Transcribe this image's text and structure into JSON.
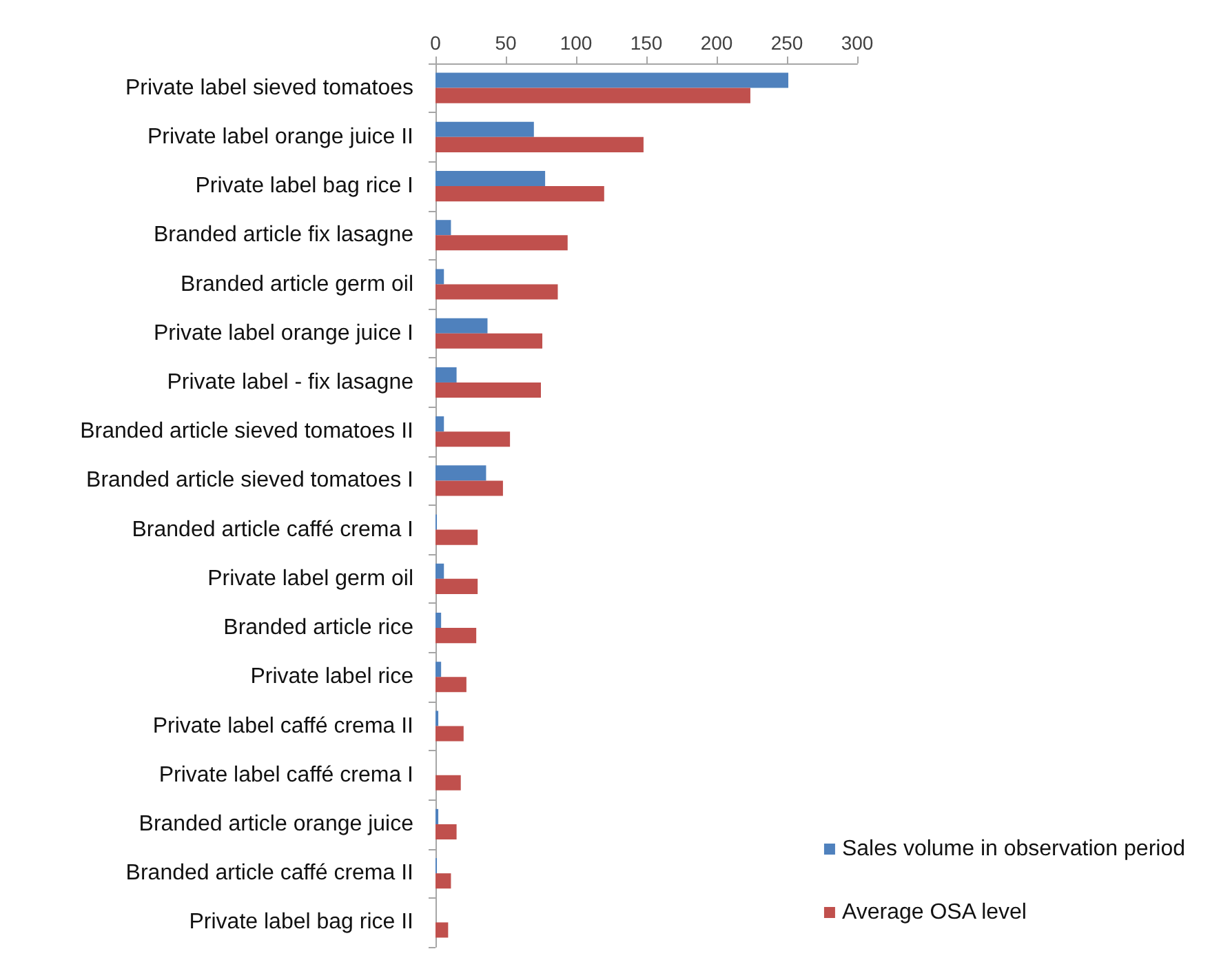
{
  "chart_data": {
    "type": "bar",
    "orientation": "horizontal",
    "categories": [
      "Private label sieved tomatoes",
      "Private label orange juice II",
      "Private label bag rice I",
      "Branded article fix lasagne",
      "Branded article germ oil",
      "Private label orange juice I",
      "Private label - fix lasagne",
      "Branded article sieved tomatoes II",
      "Branded article sieved tomatoes I",
      "Branded article caffé crema I",
      "Private label germ oil",
      "Branded article rice",
      "Private label rice",
      "Private label caffé crema II",
      "Private label caffé crema I",
      "Branded article orange juice",
      "Branded article caffé crema II",
      "Private label bag rice II"
    ],
    "series": [
      {
        "name": "Sales volume in observation period",
        "color": "#4f81bd",
        "values": [
          251,
          70,
          78,
          11,
          6,
          37,
          15,
          6,
          36,
          1,
          6,
          4,
          4,
          2,
          0,
          2,
          1,
          0
        ]
      },
      {
        "name": "Average OSA level",
        "color": "#c0504d",
        "values": [
          224,
          148,
          120,
          94,
          87,
          76,
          75,
          53,
          48,
          30,
          30,
          29,
          22,
          20,
          18,
          15,
          11,
          9
        ]
      }
    ],
    "xlim": [
      0,
      300
    ],
    "xticks": [
      0,
      50,
      100,
      150,
      200,
      250,
      300
    ],
    "grid": false,
    "legend": "bottom right"
  }
}
